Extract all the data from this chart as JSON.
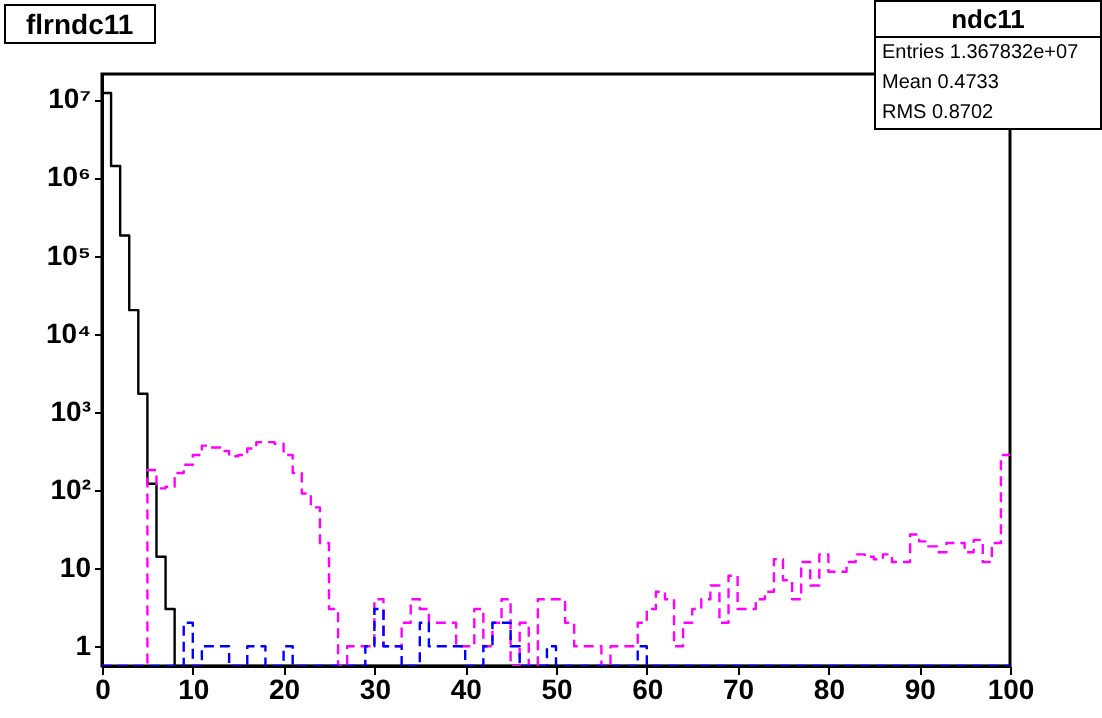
{
  "chart_data": {
    "type": "histogram",
    "title": "flrndc11",
    "annotations": [
      "ndc11",
      "Entries 1.367832e+07",
      "Mean 0.4733",
      "RMS 0.8702"
    ],
    "bins": [
      0,
      1,
      2,
      3,
      4,
      5,
      6,
      7,
      8,
      9,
      10,
      11,
      12,
      13,
      14,
      15,
      16,
      17,
      18,
      19,
      20,
      21,
      22,
      23,
      24,
      25,
      26,
      27,
      28,
      29,
      30,
      31,
      32,
      33,
      34,
      35,
      36,
      37,
      38,
      39,
      40,
      41,
      42,
      43,
      44,
      45,
      46,
      47,
      48,
      49,
      50,
      51,
      52,
      53,
      54,
      55,
      56,
      57,
      58,
      59,
      60,
      61,
      62,
      63,
      64,
      65,
      66,
      67,
      68,
      69,
      70,
      71,
      72,
      73,
      74,
      75,
      76,
      77,
      78,
      79,
      80,
      81,
      82,
      83,
      84,
      85,
      86,
      87,
      88,
      89,
      90,
      91,
      92,
      93,
      94,
      95,
      96,
      97,
      98,
      99,
      100
    ],
    "series": [
      {
        "color": "#000000",
        "line_style": "solid",
        "values": [
          12000000,
          1400000,
          180000,
          20000,
          1700,
          120,
          14,
          3,
          null,
          null,
          null,
          null,
          null,
          null,
          null,
          null,
          null,
          null,
          null,
          null,
          null,
          null,
          null,
          null,
          null,
          null,
          null,
          null,
          null,
          null,
          null,
          null,
          null,
          null,
          null,
          null,
          null,
          null,
          null,
          null,
          null,
          null,
          null,
          null,
          null,
          null,
          null,
          null,
          null,
          null,
          null,
          null,
          null,
          null,
          null,
          null,
          null,
          null,
          null,
          null,
          null,
          null,
          null,
          null,
          null,
          null,
          null,
          null,
          null,
          null,
          null,
          null,
          null,
          null,
          null,
          null,
          null,
          null,
          null,
          null,
          null,
          null,
          null,
          null,
          null,
          null,
          null,
          null,
          null,
          null,
          null,
          null,
          null,
          null,
          null,
          null,
          null,
          null,
          null,
          null
        ]
      },
      {
        "color": "#ff00ff",
        "line_style": "dashed",
        "values": [
          null,
          null,
          null,
          null,
          null,
          180,
          105,
          110,
          165,
          210,
          280,
          370,
          350,
          315,
          270,
          280,
          340,
          410,
          410,
          390,
          280,
          165,
          90,
          60,
          21,
          3,
          null,
          1,
          1,
          1,
          4,
          1,
          1,
          2,
          4,
          3,
          2,
          2,
          2,
          1,
          1,
          3,
          1,
          2,
          4,
          null,
          2,
          null,
          4,
          4,
          4,
          2,
          1,
          1,
          1,
          null,
          1,
          1,
          1,
          2,
          3,
          5,
          4,
          1,
          2,
          3,
          4,
          6,
          2,
          8,
          3,
          3,
          4,
          5,
          13,
          7,
          4,
          12,
          6,
          15,
          9,
          9,
          12,
          15,
          14,
          13,
          15,
          12,
          12,
          27,
          22,
          19,
          16,
          21,
          21,
          16,
          23,
          12,
          21,
          280
        ]
      },
      {
        "color": "#0000ff",
        "line_style": "dashed",
        "values": [
          null,
          null,
          null,
          null,
          null,
          null,
          null,
          null,
          null,
          2,
          null,
          1,
          1,
          1,
          null,
          null,
          1,
          1,
          null,
          null,
          1,
          null,
          null,
          null,
          null,
          null,
          null,
          null,
          null,
          1,
          3,
          1,
          1,
          null,
          null,
          2,
          1,
          1,
          1,
          1,
          null,
          null,
          1,
          2,
          2,
          1,
          null,
          null,
          null,
          1,
          null,
          null,
          null,
          null,
          null,
          null,
          null,
          null,
          null,
          1,
          null,
          null,
          null,
          null,
          null,
          null,
          null,
          null,
          null,
          null,
          null,
          null,
          null,
          null,
          null,
          null,
          null,
          null,
          null,
          null,
          null,
          null,
          null,
          null,
          null,
          null,
          null,
          null,
          null,
          null,
          null,
          null,
          null,
          null,
          null,
          null,
          null,
          null,
          null,
          null
        ]
      }
    ],
    "xlim": [
      0,
      100
    ],
    "xticks": [
      0,
      10,
      20,
      30,
      40,
      50,
      60,
      70,
      80,
      90,
      100
    ],
    "log": "y",
    "ylim": [
      0.56,
      21000000
    ],
    "yticks": [
      1,
      10,
      {
        "value": 100,
        "label": "10²"
      },
      {
        "value": 1000,
        "label": "10³"
      },
      {
        "value": 10000,
        "label": "10⁴"
      },
      {
        "value": 100000,
        "label": "10⁵"
      },
      {
        "value": 1000000,
        "label": "10⁶"
      },
      {
        "value": 10000000,
        "label": "10⁷"
      }
    ],
    "grid": false
  }
}
